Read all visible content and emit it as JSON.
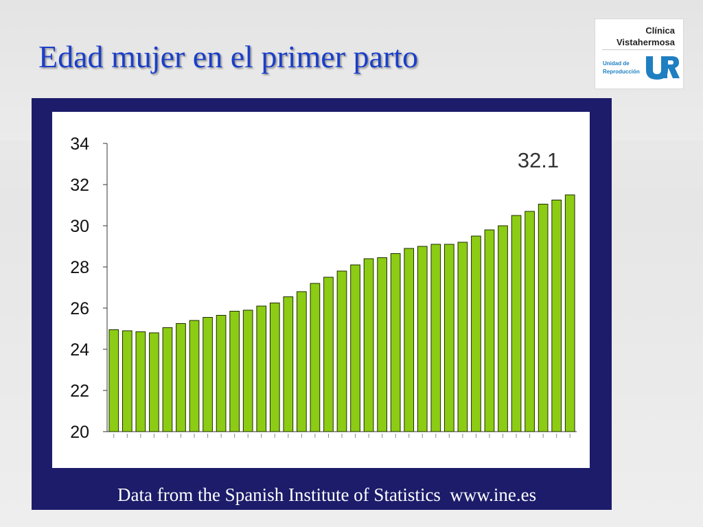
{
  "slide": {
    "title": "Edad mujer en el primer parto",
    "source": "Data from the Spanish Institute of Statistics  www.ine.es"
  },
  "logo": {
    "line1": "Clínica",
    "line2": "Vistahermosa",
    "unit_line1": "Unidad de",
    "unit_line2": "Reproducción",
    "mark_text": "UR"
  },
  "colors": {
    "title": "#1a3ec8",
    "frame": "#1c1c6b",
    "bar_fill": "#8ccc14",
    "bar_stroke": "#1e2a00",
    "logo_blue": "#1f7fc1"
  },
  "chart_data": {
    "type": "bar",
    "annotation": "32.1",
    "ylim": [
      20,
      34
    ],
    "yticks": [
      "20",
      "22",
      "24",
      "26",
      "28",
      "30",
      "32",
      "34"
    ],
    "grid": false,
    "legend": "none",
    "values": [
      24.95,
      24.9,
      24.85,
      24.8,
      25.05,
      25.25,
      25.4,
      25.55,
      25.65,
      25.85,
      25.9,
      26.1,
      26.25,
      26.55,
      26.8,
      27.2,
      27.5,
      27.8,
      28.1,
      28.4,
      28.45,
      28.65,
      28.9,
      29.0,
      29.1,
      29.1,
      29.2,
      29.5,
      29.8,
      30.0,
      30.5,
      30.7,
      31.05,
      31.25,
      31.5
    ]
  }
}
